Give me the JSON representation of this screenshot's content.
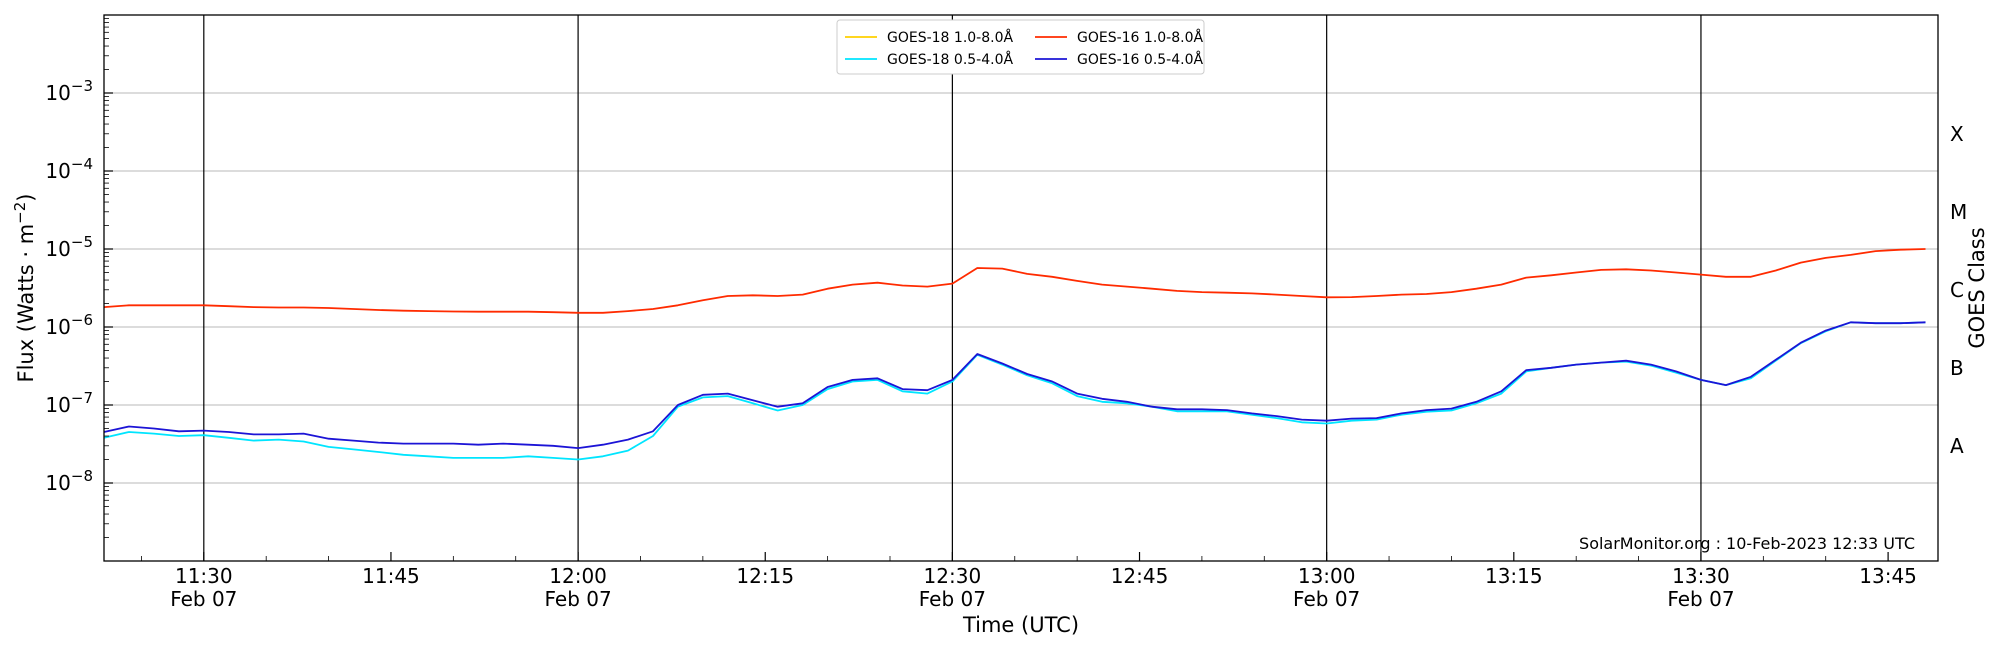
{
  "chart_data": {
    "type": "line",
    "xlabel": "Time (UTC)",
    "ylabel": "Flux (Watts · m",
    "ylabel_sup": "−2",
    "ylabel_close": ")",
    "right_label": "GOES Class",
    "credit": "SolarMonitor.org : 10-Feb-2023 12:33 UTC",
    "y_scale": "log",
    "ylim": [
      1e-09,
      0.01
    ],
    "xlim": [
      "11:22",
      "13:49"
    ],
    "y_ticks": [
      {
        "value": 1e-08,
        "exp": "−8"
      },
      {
        "value": 1e-07,
        "exp": "−7"
      },
      {
        "value": 1e-06,
        "exp": "−6"
      },
      {
        "value": 1e-05,
        "exp": "−5"
      },
      {
        "value": 0.0001,
        "exp": "−4"
      },
      {
        "value": 0.001,
        "exp": "−3"
      }
    ],
    "y_tick_base": "10",
    "x_ticks": [
      {
        "time": "11:30",
        "label": "11:30",
        "date": "Feb 07"
      },
      {
        "time": "11:45",
        "label": "11:45",
        "date": ""
      },
      {
        "time": "12:00",
        "label": "12:00",
        "date": "Feb 07"
      },
      {
        "time": "12:15",
        "label": "12:15",
        "date": ""
      },
      {
        "time": "12:30",
        "label": "12:30",
        "date": "Feb 07"
      },
      {
        "time": "12:45",
        "label": "12:45",
        "date": ""
      },
      {
        "time": "13:00",
        "label": "13:00",
        "date": "Feb 07"
      },
      {
        "time": "13:15",
        "label": "13:15",
        "date": ""
      },
      {
        "time": "13:30",
        "label": "13:30",
        "date": "Feb 07"
      },
      {
        "time": "13:45",
        "label": "13:45",
        "date": ""
      }
    ],
    "vertical_lines": [
      "11:30",
      "12:00",
      "12:30",
      "13:00",
      "13:30"
    ],
    "goes_classes": [
      {
        "label": "A",
        "value": 3e-08
      },
      {
        "label": "B",
        "value": 3e-07
      },
      {
        "label": "C",
        "value": 3e-06
      },
      {
        "label": "M",
        "value": 3e-05
      },
      {
        "label": "X",
        "value": 0.0003
      }
    ],
    "grid": "horizontal",
    "legend_position": "top-center",
    "series": [
      {
        "name": "GOES-18 1.0-8.0Å",
        "color": "#ffd000",
        "x": [],
        "y": []
      },
      {
        "name": "GOES-18 0.5-4.0Å",
        "color": "#00e5ff",
        "x": [
          "11:22",
          "11:24",
          "11:26",
          "11:28",
          "11:30",
          "11:32",
          "11:34",
          "11:36",
          "11:38",
          "11:40",
          "11:42",
          "11:44",
          "11:46",
          "11:48",
          "11:50",
          "11:52",
          "11:54",
          "11:56",
          "11:58",
          "12:00",
          "12:02",
          "12:04",
          "12:06",
          "12:08",
          "12:10",
          "12:12",
          "12:14",
          "12:16",
          "12:18",
          "12:20",
          "12:22",
          "12:24",
          "12:26",
          "12:28",
          "12:30",
          "12:32",
          "12:34",
          "12:36",
          "12:38",
          "12:40",
          "12:42",
          "12:44",
          "12:46",
          "12:48",
          "12:50",
          "12:52",
          "12:54",
          "12:56",
          "12:58",
          "13:00",
          "13:02",
          "13:04",
          "13:06",
          "13:08",
          "13:10",
          "13:12",
          "13:14",
          "13:16",
          "13:18",
          "13:20",
          "13:22",
          "13:24",
          "13:26",
          "13:28",
          "13:30",
          "13:32",
          "13:34",
          "13:36",
          "13:38",
          "13:40",
          "13:42",
          "13:44",
          "13:46",
          "13:48"
        ],
        "y": [
          3.8e-08,
          4.5e-08,
          4.3e-08,
          4e-08,
          4.1e-08,
          3.8e-08,
          3.5e-08,
          3.6e-08,
          3.4e-08,
          2.9e-08,
          2.7e-08,
          2.5e-08,
          2.3e-08,
          2.2e-08,
          2.1e-08,
          2.1e-08,
          2.1e-08,
          2.2e-08,
          2.1e-08,
          2e-08,
          2.2e-08,
          2.6e-08,
          4e-08,
          9.5e-08,
          1.25e-07,
          1.3e-07,
          1.05e-07,
          8.5e-08,
          1e-07,
          1.6e-07,
          2e-07,
          2.1e-07,
          1.5e-07,
          1.4e-07,
          2e-07,
          4.4e-07,
          3.3e-07,
          2.4e-07,
          1.9e-07,
          1.3e-07,
          1.1e-07,
          1.05e-07,
          9.5e-08,
          8.3e-08,
          8.3e-08,
          8.3e-08,
          7.5e-08,
          6.8e-08,
          6e-08,
          5.8e-08,
          6.3e-08,
          6.5e-08,
          7.5e-08,
          8.2e-08,
          8.5e-08,
          1.05e-07,
          1.4e-07,
          2.7e-07,
          3e-07,
          3.3e-07,
          3.5e-07,
          3.6e-07,
          3.2e-07,
          2.6e-07,
          2.1e-07,
          1.8e-07,
          2.2e-07,
          3.7e-07,
          6.2e-07,
          8.8e-07,
          1.15e-06,
          1.12e-06,
          1.12e-06,
          1.15e-06
        ]
      },
      {
        "name": "GOES-16 1.0-8.0Å",
        "color": "#ff2b00",
        "x": [
          "11:22",
          "11:24",
          "11:26",
          "11:28",
          "11:30",
          "11:32",
          "11:34",
          "11:36",
          "11:38",
          "11:40",
          "11:42",
          "11:44",
          "11:46",
          "11:48",
          "11:50",
          "11:52",
          "11:54",
          "11:56",
          "11:58",
          "12:00",
          "12:02",
          "12:04",
          "12:06",
          "12:08",
          "12:10",
          "12:12",
          "12:14",
          "12:16",
          "12:18",
          "12:20",
          "12:22",
          "12:24",
          "12:26",
          "12:28",
          "12:30",
          "12:32",
          "12:34",
          "12:36",
          "12:38",
          "12:40",
          "12:42",
          "12:44",
          "12:46",
          "12:48",
          "12:50",
          "12:52",
          "12:54",
          "12:56",
          "12:58",
          "13:00",
          "13:02",
          "13:04",
          "13:06",
          "13:08",
          "13:10",
          "13:12",
          "13:14",
          "13:16",
          "13:18",
          "13:20",
          "13:22",
          "13:24",
          "13:26",
          "13:28",
          "13:30",
          "13:32",
          "13:34",
          "13:36",
          "13:38",
          "13:40",
          "13:42",
          "13:44",
          "13:46",
          "13:48"
        ],
        "y": [
          1.8e-06,
          1.9e-06,
          1.9e-06,
          1.9e-06,
          1.9e-06,
          1.85e-06,
          1.8e-06,
          1.78e-06,
          1.78e-06,
          1.75e-06,
          1.7e-06,
          1.65e-06,
          1.62e-06,
          1.6e-06,
          1.58e-06,
          1.57e-06,
          1.57e-06,
          1.57e-06,
          1.55e-06,
          1.52e-06,
          1.52e-06,
          1.6e-06,
          1.7e-06,
          1.9e-06,
          2.2e-06,
          2.5e-06,
          2.55e-06,
          2.5e-06,
          2.6e-06,
          3.1e-06,
          3.5e-06,
          3.7e-06,
          3.4e-06,
          3.3e-06,
          3.6e-06,
          5.7e-06,
          5.6e-06,
          4.8e-06,
          4.4e-06,
          3.9e-06,
          3.5e-06,
          3.3e-06,
          3.1e-06,
          2.9e-06,
          2.8e-06,
          2.75e-06,
          2.7e-06,
          2.6e-06,
          2.5e-06,
          2.4e-06,
          2.42e-06,
          2.5e-06,
          2.6e-06,
          2.65e-06,
          2.8e-06,
          3.1e-06,
          3.5e-06,
          4.3e-06,
          4.6e-06,
          5e-06,
          5.4e-06,
          5.5e-06,
          5.3e-06,
          5e-06,
          4.7e-06,
          4.4e-06,
          4.4e-06,
          5.3e-06,
          6.7e-06,
          7.7e-06,
          8.4e-06,
          9.4e-06,
          9.8e-06,
          1e-05
        ]
      },
      {
        "name": "GOES-16 0.5-4.0Å",
        "color": "#1c14d6",
        "x": [
          "11:22",
          "11:24",
          "11:26",
          "11:28",
          "11:30",
          "11:32",
          "11:34",
          "11:36",
          "11:38",
          "11:40",
          "11:42",
          "11:44",
          "11:46",
          "11:48",
          "11:50",
          "11:52",
          "11:54",
          "11:56",
          "11:58",
          "12:00",
          "12:02",
          "12:04",
          "12:06",
          "12:08",
          "12:10",
          "12:12",
          "12:14",
          "12:16",
          "12:18",
          "12:20",
          "12:22",
          "12:24",
          "12:26",
          "12:28",
          "12:30",
          "12:32",
          "12:34",
          "12:36",
          "12:38",
          "12:40",
          "12:42",
          "12:44",
          "12:46",
          "12:48",
          "12:50",
          "12:52",
          "12:54",
          "12:56",
          "12:58",
          "13:00",
          "13:02",
          "13:04",
          "13:06",
          "13:08",
          "13:10",
          "13:12",
          "13:14",
          "13:16",
          "13:18",
          "13:20",
          "13:22",
          "13:24",
          "13:26",
          "13:28",
          "13:30",
          "13:32",
          "13:34",
          "13:36",
          "13:38",
          "13:40",
          "13:42",
          "13:44",
          "13:46",
          "13:48"
        ],
        "y": [
          4.5e-08,
          5.3e-08,
          5e-08,
          4.6e-08,
          4.7e-08,
          4.5e-08,
          4.2e-08,
          4.2e-08,
          4.3e-08,
          3.7e-08,
          3.5e-08,
          3.3e-08,
          3.2e-08,
          3.2e-08,
          3.2e-08,
          3.1e-08,
          3.2e-08,
          3.1e-08,
          3e-08,
          2.8e-08,
          3.1e-08,
          3.6e-08,
          4.6e-08,
          1e-07,
          1.35e-07,
          1.4e-07,
          1.15e-07,
          9.5e-08,
          1.05e-07,
          1.7e-07,
          2.1e-07,
          2.2e-07,
          1.6e-07,
          1.55e-07,
          2.1e-07,
          4.5e-07,
          3.4e-07,
          2.5e-07,
          2e-07,
          1.4e-07,
          1.2e-07,
          1.1e-07,
          9.5e-08,
          8.8e-08,
          8.8e-08,
          8.6e-08,
          7.8e-08,
          7.2e-08,
          6.5e-08,
          6.3e-08,
          6.7e-08,
          6.8e-08,
          7.8e-08,
          8.6e-08,
          9e-08,
          1.1e-07,
          1.5e-07,
          2.8e-07,
          3e-07,
          3.3e-07,
          3.5e-07,
          3.7e-07,
          3.3e-07,
          2.7e-07,
          2.1e-07,
          1.8e-07,
          2.3e-07,
          3.8e-07,
          6.3e-07,
          9e-07,
          1.15e-06,
          1.12e-06,
          1.12e-06,
          1.15e-06
        ]
      }
    ]
  }
}
